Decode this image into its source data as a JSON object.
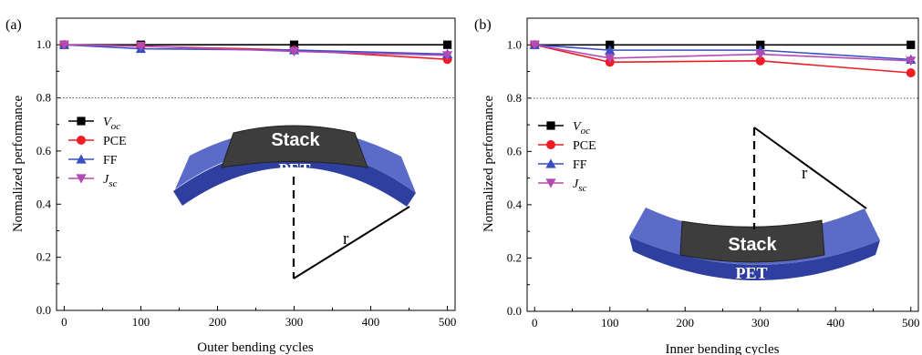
{
  "colors": {
    "voc": "#000000",
    "pce": "#ee1c25",
    "ff": "#3b4fc4",
    "jsc": "#b44bb4",
    "stack": "#3d3d3d",
    "pet_top": "#5c6bc8",
    "pet_front": "#2f3fa0"
  },
  "panels": [
    {
      "label": "(a)",
      "xlabel": "Outer bending cycles",
      "ylabel": "Normalized performance",
      "stack_label": "Stack",
      "pet_label": "PET",
      "radius_label": "r"
    },
    {
      "label": "(b)",
      "xlabel": "Inner bending cycles",
      "ylabel": "Normalized performance",
      "stack_label": "Stack",
      "pet_label": "PET",
      "radius_label": "r"
    }
  ],
  "chart_data": [
    {
      "type": "line",
      "title": "",
      "xlabel": "Outer bending cycles",
      "ylabel": "Normalized performance",
      "xlim": [
        -10,
        510
      ],
      "ylim": [
        0.0,
        1.1
      ],
      "xticks": [
        0,
        100,
        200,
        300,
        400,
        500
      ],
      "yticks": [
        0.0,
        0.2,
        0.4,
        0.6,
        0.8,
        1.0
      ],
      "reference_line_y": 0.8,
      "legend_position": "left",
      "x": [
        0,
        100,
        300,
        500
      ],
      "series": [
        {
          "name": "V_oc",
          "marker": "square",
          "color_key": "voc",
          "values": [
            1.0,
            1.0,
            1.0,
            1.0
          ]
        },
        {
          "name": "PCE",
          "marker": "circle",
          "color_key": "pce",
          "values": [
            1.0,
            0.995,
            0.98,
            0.945
          ]
        },
        {
          "name": "FF",
          "marker": "triangle-up",
          "color_key": "ff",
          "values": [
            1.0,
            0.985,
            0.98,
            0.965
          ]
        },
        {
          "name": "J_sc",
          "marker": "triangle-down",
          "color_key": "jsc",
          "values": [
            1.0,
            0.995,
            0.975,
            0.96
          ]
        }
      ]
    },
    {
      "type": "line",
      "title": "",
      "xlabel": "Inner bending cycles",
      "ylabel": "Normalized performance",
      "xlim": [
        -10,
        510
      ],
      "ylim": [
        0.0,
        1.1
      ],
      "xticks": [
        0,
        100,
        200,
        300,
        400,
        500
      ],
      "yticks": [
        0.0,
        0.2,
        0.4,
        0.6,
        0.8,
        1.0
      ],
      "reference_line_y": 0.8,
      "legend_position": "left",
      "x": [
        0,
        100,
        300,
        500
      ],
      "series": [
        {
          "name": "V_oc",
          "marker": "square",
          "color_key": "voc",
          "values": [
            1.0,
            1.0,
            1.0,
            1.0
          ]
        },
        {
          "name": "PCE",
          "marker": "circle",
          "color_key": "pce",
          "values": [
            1.0,
            0.935,
            0.94,
            0.895
          ]
        },
        {
          "name": "FF",
          "marker": "triangle-up",
          "color_key": "ff",
          "values": [
            1.0,
            0.98,
            0.98,
            0.945
          ]
        },
        {
          "name": "J_sc",
          "marker": "triangle-down",
          "color_key": "jsc",
          "values": [
            1.0,
            0.95,
            0.965,
            0.94
          ]
        }
      ]
    }
  ]
}
